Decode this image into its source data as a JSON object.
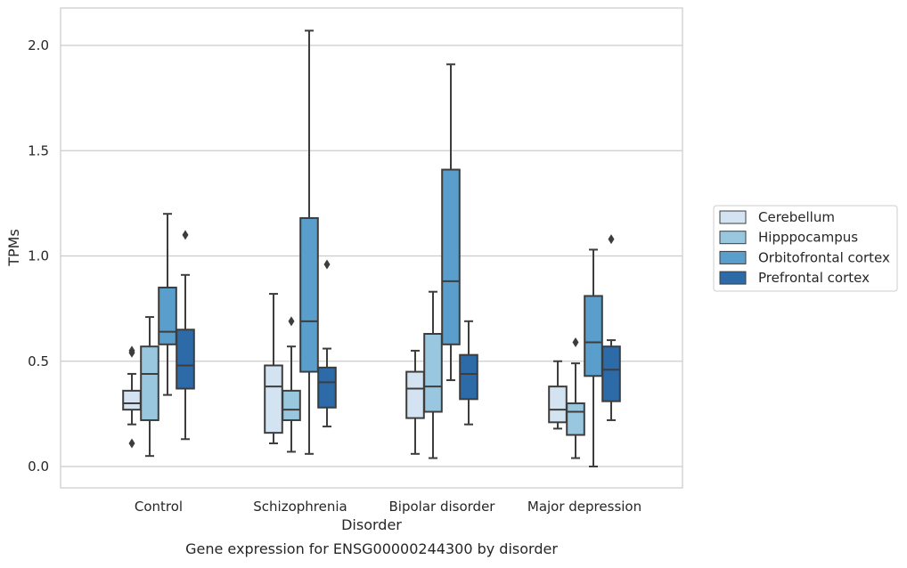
{
  "chart_data": {
    "type": "box",
    "title": "",
    "caption": "Gene expression for ENSG00000244300 by disorder",
    "xlabel": "Disorder",
    "ylabel": "TPMs",
    "ylim": [
      -0.1,
      2.18
    ],
    "yticks": [
      0.0,
      0.5,
      1.0,
      1.5,
      2.0
    ],
    "ytick_labels": [
      "0.0",
      "0.5",
      "1.0",
      "1.5",
      "2.0"
    ],
    "grid": "horizontal",
    "legend_position": "right",
    "categories": [
      "Control",
      "Schizophrenia",
      "Bipolar disorder",
      "Major depression"
    ],
    "series": [
      {
        "name": "Cerebellum",
        "color": "#d3e3f2",
        "boxes": [
          {
            "whisker_low": 0.2,
            "q1": 0.27,
            "median": 0.3,
            "q3": 0.36,
            "whisker_high": 0.44,
            "outliers": [
              0.11,
              0.54,
              0.55
            ]
          },
          {
            "whisker_low": 0.11,
            "q1": 0.16,
            "median": 0.38,
            "q3": 0.48,
            "whisker_high": 0.82,
            "outliers": []
          },
          {
            "whisker_low": 0.06,
            "q1": 0.23,
            "median": 0.37,
            "q3": 0.45,
            "whisker_high": 0.55,
            "outliers": []
          },
          {
            "whisker_low": 0.18,
            "q1": 0.21,
            "median": 0.27,
            "q3": 0.38,
            "whisker_high": 0.5,
            "outliers": []
          }
        ]
      },
      {
        "name": "Hipppocampus",
        "color": "#9ac7e0",
        "boxes": [
          {
            "whisker_low": 0.05,
            "q1": 0.22,
            "median": 0.44,
            "q3": 0.57,
            "whisker_high": 0.71,
            "outliers": []
          },
          {
            "whisker_low": 0.07,
            "q1": 0.22,
            "median": 0.27,
            "q3": 0.36,
            "whisker_high": 0.57,
            "outliers": [
              0.69
            ]
          },
          {
            "whisker_low": 0.04,
            "q1": 0.26,
            "median": 0.38,
            "q3": 0.63,
            "whisker_high": 0.83,
            "outliers": []
          },
          {
            "whisker_low": 0.04,
            "q1": 0.15,
            "median": 0.26,
            "q3": 0.3,
            "whisker_high": 0.49,
            "outliers": [
              0.59
            ]
          }
        ]
      },
      {
        "name": "Orbitofrontal cortex",
        "color": "#5a9ecb",
        "boxes": [
          {
            "whisker_low": 0.34,
            "q1": 0.58,
            "median": 0.64,
            "q3": 0.85,
            "whisker_high": 1.2,
            "outliers": []
          },
          {
            "whisker_low": 0.06,
            "q1": 0.45,
            "median": 0.69,
            "q3": 1.18,
            "whisker_high": 2.07,
            "outliers": []
          },
          {
            "whisker_low": 0.41,
            "q1": 0.58,
            "median": 0.88,
            "q3": 1.41,
            "whisker_high": 1.91,
            "outliers": []
          },
          {
            "whisker_low": 0.0,
            "q1": 0.43,
            "median": 0.59,
            "q3": 0.81,
            "whisker_high": 1.03,
            "outliers": []
          }
        ]
      },
      {
        "name": "Prefrontal cortex",
        "color": "#2c6aa8",
        "boxes": [
          {
            "whisker_low": 0.13,
            "q1": 0.37,
            "median": 0.48,
            "q3": 0.65,
            "whisker_high": 0.91,
            "outliers": [
              1.1
            ]
          },
          {
            "whisker_low": 0.19,
            "q1": 0.28,
            "median": 0.4,
            "q3": 0.47,
            "whisker_high": 0.56,
            "outliers": [
              0.96
            ]
          },
          {
            "whisker_low": 0.2,
            "q1": 0.32,
            "median": 0.44,
            "q3": 0.53,
            "whisker_high": 0.69,
            "outliers": []
          },
          {
            "whisker_low": 0.22,
            "q1": 0.31,
            "median": 0.46,
            "q3": 0.57,
            "whisker_high": 0.6,
            "outliers": [
              1.08
            ]
          }
        ]
      }
    ]
  },
  "colors": {
    "axes_edge": "#cccccc",
    "grid": "#cccccc",
    "box_line": "#3d3d3d",
    "legend_edge": "#cccccc"
  }
}
